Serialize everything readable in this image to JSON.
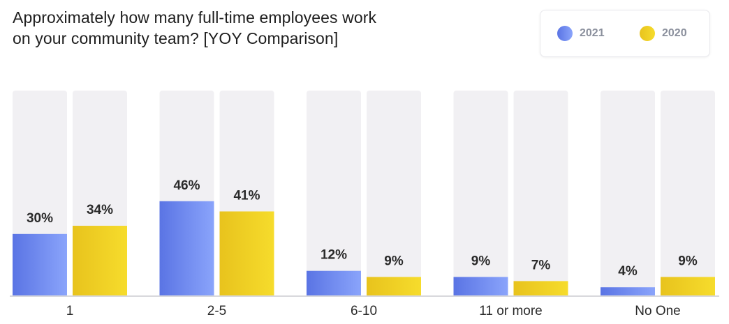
{
  "chart_data": {
    "type": "bar",
    "title": "Approximately how many full-time employees work\non your community team?  [YOY Comparison]",
    "categories": [
      "1",
      "2-5",
      "6-10",
      "11 or more",
      "No One"
    ],
    "series": [
      {
        "name": "2021",
        "values": [
          30,
          46,
          12,
          9,
          4
        ],
        "labels": [
          "30%",
          "46%",
          "12%",
          "9%",
          "4%"
        ]
      },
      {
        "name": "2020",
        "values": [
          34,
          41,
          9,
          7,
          9
        ],
        "labels": [
          "34%",
          "41%",
          "9%",
          "7%",
          "9%"
        ]
      }
    ],
    "ylim": [
      0,
      100
    ],
    "grid": false,
    "legend_position": "top-right"
  },
  "colors": {
    "series_2021_start": "#5a74e4",
    "series_2021_end": "#8aa4fb",
    "series_2020_start": "#e8c31d",
    "series_2020_end": "#f6dc2c",
    "track": "#f1f0f3",
    "baseline": "#d8d8dc"
  }
}
